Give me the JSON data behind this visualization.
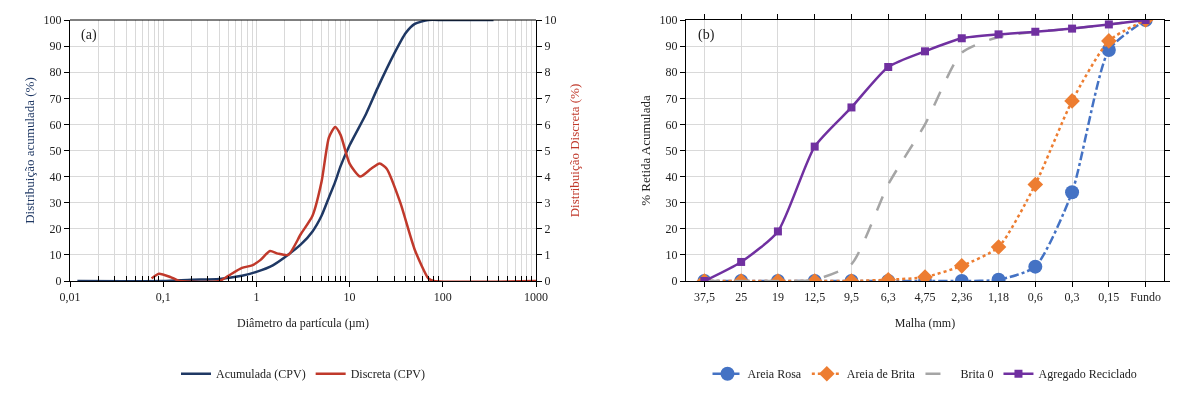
{
  "chart_data": [
    {
      "type": "line",
      "xlabel": "Diâmetro da partícula (µm)",
      "ylabel": "Distribuição acumulada (%)",
      "y2label": "Distribuição Discreta (%)",
      "annotations": [
        "(a)"
      ],
      "log": "x",
      "grid": true,
      "legend": "bottom",
      "marker": "none",
      "line_style": "solid",
      "xlim": [
        0.01,
        1000
      ],
      "xticks": [
        {
          "value": 0.01,
          "label": "0,01"
        },
        {
          "value": 0.1,
          "label": "0,1"
        },
        1,
        10,
        100,
        1000
      ],
      "ylim": [
        0,
        100
      ],
      "yticks": [
        0,
        10,
        20,
        30,
        40,
        50,
        60,
        70,
        80,
        90,
        100
      ],
      "y2lim": [
        0,
        10
      ],
      "y2ticks": [
        0,
        1,
        2,
        3,
        4,
        5,
        6,
        7,
        8,
        9,
        10
      ],
      "series": [
        {
          "name": "Acumulada (CPV)",
          "color": "#1f3864",
          "x": [
            0.012,
            0.1,
            0.2,
            0.4,
            0.7,
            1,
            1.5,
            2,
            3,
            4,
            5,
            6,
            7,
            8,
            10,
            15,
            20,
            30,
            40,
            50,
            70,
            100,
            350
          ],
          "values": [
            0,
            0,
            0.5,
            0.8,
            2,
            3.5,
            6,
            9,
            14,
            19,
            25,
            32,
            38,
            44,
            52,
            64,
            74,
            87,
            95,
            98.5,
            100,
            100,
            100
          ]
        },
        {
          "name": "Discreta (CPV)",
          "color": "#c0392b",
          "axis": "y2",
          "x": [
            0.075,
            0.09,
            0.12,
            0.15,
            0.4,
            0.5,
            0.7,
            0.9,
            1.1,
            1.4,
            1.7,
            2.2,
            3,
            4,
            5,
            6,
            7,
            8,
            10,
            13,
            17,
            21,
            25,
            35,
            50,
            70,
            80,
            1000
          ],
          "values": [
            0.1,
            0.28,
            0.15,
            0,
            0,
            0.2,
            0.5,
            0.6,
            0.8,
            1.15,
            1.05,
            1,
            1.8,
            2.5,
            3.8,
            5.5,
            5.9,
            5.6,
            4.5,
            4,
            4.3,
            4.5,
            4.3,
            3,
            1.2,
            0.1,
            0,
            0
          ]
        }
      ]
    },
    {
      "type": "line",
      "xlabel": "Malha (mm)",
      "ylabel": "% Retida Acumulada",
      "annotations": [
        "(b)"
      ],
      "grid": true,
      "legend": "bottom",
      "categories": [
        "37,5",
        "25",
        "19",
        "12,5",
        "9,5",
        "6,3",
        "4,75",
        "2,36",
        "1,18",
        "0,6",
        "0,3",
        "0,15",
        "Fundo"
      ],
      "ylim": [
        0,
        100
      ],
      "yticks": [
        0,
        10,
        20,
        30,
        40,
        50,
        60,
        70,
        80,
        90,
        100
      ],
      "series": [
        {
          "name": "Areia Rosa",
          "color": "#4472c4",
          "marker": "circle",
          "line_style": "dashdot",
          "values": [
            0,
            0,
            0,
            0,
            0,
            0,
            0,
            0,
            0.5,
            5.5,
            34,
            88.5,
            100
          ]
        },
        {
          "name": "Areia de Brita",
          "color": "#ed7d31",
          "marker": "diamond",
          "line_style": "dotted",
          "values": [
            0,
            0,
            0,
            0,
            0,
            0.5,
            1.5,
            5.8,
            13,
            37,
            69,
            92,
            100
          ]
        },
        {
          "name": "Brita 0",
          "color": "#a5a5a5",
          "marker": "none",
          "line_style": "dashed",
          "values": [
            0,
            0,
            0,
            0.5,
            6.5,
            37,
            60,
            87.5,
            93.5,
            95.5,
            96.7,
            98.3,
            100
          ]
        },
        {
          "name": "Agregado Reciclado",
          "color": "#7030a0",
          "marker": "square",
          "line_style": "solid",
          "values": [
            0,
            7.3,
            19,
            51.5,
            66.5,
            82,
            88,
            93,
            94.5,
            95.5,
            96.7,
            98.3,
            100
          ]
        }
      ]
    }
  ]
}
